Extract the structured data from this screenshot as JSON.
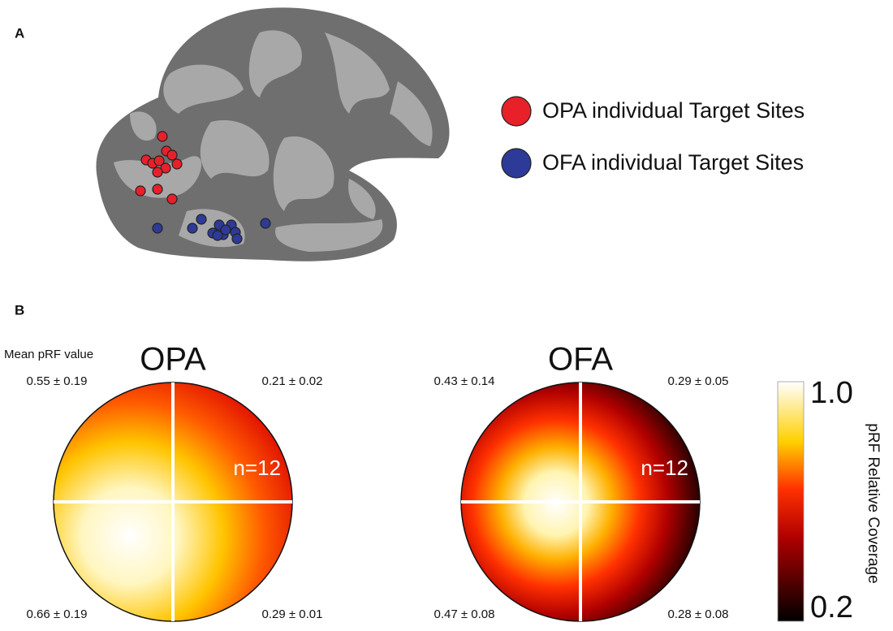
{
  "panel_a": {
    "label": "A",
    "legend": [
      "OPA individual Target Sites",
      "OFA individual Target Sites"
    ]
  },
  "panel_b": {
    "label": "B",
    "row_label": "Mean pRF value",
    "maps": [
      {
        "title": "OPA",
        "n": "n=12",
        "quadrants": {
          "upper_left": "0.55 ± 0.19",
          "upper_right": "0.21 ± 0.02",
          "lower_left": "0.66 ± 0.19",
          "lower_right": "0.29 ± 0.01"
        }
      },
      {
        "title": "OFA",
        "n": "n=12",
        "quadrants": {
          "upper_left": "0.43 ± 0.14",
          "upper_right": "0.29 ± 0.05",
          "lower_left": "0.47 ± 0.08",
          "lower_right": "0.28 ± 0.08"
        }
      }
    ],
    "colorbar": {
      "max": "1.0",
      "min": "0.2",
      "label": "pRF Relative Coverage"
    }
  }
}
